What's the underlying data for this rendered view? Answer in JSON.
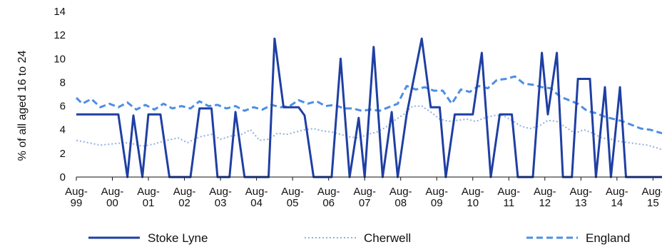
{
  "chart_data": {
    "type": "line",
    "ylabel": "% of all aged 16 to 24",
    "ylim": [
      0,
      14
    ],
    "yticks": [
      0,
      2,
      4,
      6,
      8,
      10,
      12,
      14
    ],
    "xlim": [
      0,
      195
    ],
    "xticks": [
      {
        "line1": "Aug-",
        "line2": "99",
        "x": 0
      },
      {
        "line1": "Aug-",
        "line2": "00",
        "x": 12
      },
      {
        "line1": "Aug-",
        "line2": "01",
        "x": 24
      },
      {
        "line1": "Aug-",
        "line2": "02",
        "x": 36
      },
      {
        "line1": "Aug-",
        "line2": "03",
        "x": 48
      },
      {
        "line1": "Aug-",
        "line2": "04",
        "x": 60
      },
      {
        "line1": "Aug-",
        "line2": "05",
        "x": 72
      },
      {
        "line1": "Aug-",
        "line2": "06",
        "x": 84
      },
      {
        "line1": "Aug-",
        "line2": "07",
        "x": 96
      },
      {
        "line1": "Aug-",
        "line2": "08",
        "x": 108
      },
      {
        "line1": "Aug-",
        "line2": "09",
        "x": 120
      },
      {
        "line1": "Aug-",
        "line2": "10",
        "x": 132
      },
      {
        "line1": "Aug-",
        "line2": "11",
        "x": 144
      },
      {
        "line1": "Aug-",
        "line2": "12",
        "x": 156
      },
      {
        "line1": "Aug-",
        "line2": "13",
        "x": 168
      },
      {
        "line1": "Aug-",
        "line2": "14",
        "x": 180
      },
      {
        "line1": "Aug-",
        "line2": "15",
        "x": 192
      }
    ],
    "grid": false,
    "legend_position": "bottom",
    "series": [
      {
        "name": "Stoke Lyne",
        "color": "#1f3fa3",
        "dash": "solid",
        "points": [
          [
            0,
            5.3
          ],
          [
            14,
            5.3
          ],
          [
            17,
            0
          ],
          [
            19,
            5.2
          ],
          [
            22,
            0
          ],
          [
            24,
            5.3
          ],
          [
            28,
            5.3
          ],
          [
            31,
            0
          ],
          [
            38,
            0
          ],
          [
            41,
            5.8
          ],
          [
            45,
            5.8
          ],
          [
            47,
            0
          ],
          [
            51,
            0
          ],
          [
            53,
            5.5
          ],
          [
            56,
            0
          ],
          [
            64,
            0
          ],
          [
            66,
            11.7
          ],
          [
            69,
            5.9
          ],
          [
            74,
            5.9
          ],
          [
            76,
            5.2
          ],
          [
            79,
            0
          ],
          [
            85,
            0
          ],
          [
            88,
            10.0
          ],
          [
            91,
            0
          ],
          [
            94,
            5.0
          ],
          [
            96,
            0
          ],
          [
            99,
            11.0
          ],
          [
            102,
            0
          ],
          [
            105,
            5.5
          ],
          [
            107,
            0
          ],
          [
            110,
            5.3
          ],
          [
            115,
            11.7
          ],
          [
            118,
            5.9
          ],
          [
            121,
            5.9
          ],
          [
            123,
            0
          ],
          [
            126,
            5.3
          ],
          [
            132,
            5.3
          ],
          [
            135,
            10.5
          ],
          [
            138,
            0
          ],
          [
            141,
            5.3
          ],
          [
            145,
            5.3
          ],
          [
            147,
            0
          ],
          [
            152,
            0
          ],
          [
            155,
            10.5
          ],
          [
            157,
            5.3
          ],
          [
            160,
            10.5
          ],
          [
            162,
            0
          ],
          [
            165,
            0
          ],
          [
            167,
            8.3
          ],
          [
            171,
            8.3
          ],
          [
            173,
            0
          ],
          [
            176,
            7.6
          ],
          [
            178,
            0
          ],
          [
            181,
            7.6
          ],
          [
            183,
            0
          ],
          [
            195,
            0
          ]
        ]
      },
      {
        "name": "Cherwell",
        "color": "#8eb1e0",
        "dash": "dotted",
        "points": [
          [
            0,
            3.1
          ],
          [
            4,
            2.9
          ],
          [
            8,
            2.7
          ],
          [
            12,
            2.8
          ],
          [
            16,
            2.9
          ],
          [
            19,
            2.8
          ],
          [
            22,
            2.6
          ],
          [
            26,
            2.8
          ],
          [
            30,
            3.1
          ],
          [
            34,
            3.3
          ],
          [
            37,
            2.9
          ],
          [
            41,
            3.4
          ],
          [
            45,
            3.6
          ],
          [
            48,
            3.2
          ],
          [
            52,
            3.5
          ],
          [
            55,
            3.6
          ],
          [
            58,
            4.0
          ],
          [
            61,
            3.1
          ],
          [
            64,
            3.2
          ],
          [
            67,
            3.7
          ],
          [
            70,
            3.6
          ],
          [
            73,
            3.8
          ],
          [
            76,
            4.0
          ],
          [
            79,
            4.1
          ],
          [
            82,
            3.9
          ],
          [
            85,
            3.8
          ],
          [
            88,
            3.6
          ],
          [
            91,
            3.4
          ],
          [
            94,
            3.3
          ],
          [
            97,
            3.6
          ],
          [
            100,
            3.8
          ],
          [
            103,
            4.2
          ],
          [
            106,
            4.8
          ],
          [
            109,
            5.3
          ],
          [
            112,
            6.0
          ],
          [
            115,
            6.0
          ],
          [
            118,
            5.5
          ],
          [
            121,
            4.9
          ],
          [
            124,
            4.7
          ],
          [
            127,
            4.8
          ],
          [
            130,
            4.9
          ],
          [
            133,
            4.7
          ],
          [
            136,
            5.0
          ],
          [
            139,
            5.2
          ],
          [
            142,
            5.2
          ],
          [
            145,
            4.8
          ],
          [
            148,
            4.3
          ],
          [
            151,
            4.1
          ],
          [
            154,
            4.3
          ],
          [
            157,
            4.8
          ],
          [
            160,
            4.7
          ],
          [
            163,
            4.2
          ],
          [
            166,
            3.7
          ],
          [
            169,
            4.0
          ],
          [
            172,
            3.7
          ],
          [
            175,
            3.3
          ],
          [
            178,
            3.2
          ],
          [
            181,
            3.0
          ],
          [
            184,
            2.9
          ],
          [
            187,
            2.8
          ],
          [
            190,
            2.7
          ],
          [
            193,
            2.5
          ],
          [
            195,
            2.3
          ]
        ]
      },
      {
        "name": "England",
        "color": "#4d8ee6",
        "dash": "dashed",
        "points": [
          [
            0,
            6.7
          ],
          [
            2,
            6.2
          ],
          [
            5,
            6.6
          ],
          [
            8,
            5.9
          ],
          [
            11,
            6.2
          ],
          [
            14,
            5.9
          ],
          [
            17,
            6.3
          ],
          [
            20,
            5.7
          ],
          [
            23,
            6.1
          ],
          [
            26,
            5.7
          ],
          [
            29,
            6.2
          ],
          [
            32,
            5.8
          ],
          [
            35,
            6.0
          ],
          [
            38,
            5.8
          ],
          [
            41,
            6.4
          ],
          [
            44,
            6.0
          ],
          [
            47,
            6.1
          ],
          [
            50,
            5.8
          ],
          [
            53,
            6.0
          ],
          [
            56,
            5.6
          ],
          [
            59,
            5.9
          ],
          [
            62,
            5.7
          ],
          [
            65,
            6.1
          ],
          [
            68,
            5.9
          ],
          [
            71,
            6.0
          ],
          [
            74,
            6.5
          ],
          [
            77,
            6.2
          ],
          [
            80,
            6.4
          ],
          [
            83,
            6.0
          ],
          [
            86,
            6.1
          ],
          [
            89,
            5.8
          ],
          [
            92,
            5.8
          ],
          [
            95,
            5.6
          ],
          [
            98,
            5.7
          ],
          [
            101,
            5.6
          ],
          [
            104,
            5.9
          ],
          [
            107,
            6.2
          ],
          [
            110,
            7.7
          ],
          [
            113,
            7.4
          ],
          [
            116,
            7.6
          ],
          [
            119,
            7.3
          ],
          [
            122,
            7.3
          ],
          [
            125,
            6.2
          ],
          [
            128,
            7.4
          ],
          [
            131,
            7.2
          ],
          [
            134,
            7.7
          ],
          [
            137,
            7.5
          ],
          [
            140,
            8.2
          ],
          [
            143,
            8.3
          ],
          [
            146,
            8.5
          ],
          [
            149,
            7.9
          ],
          [
            152,
            7.8
          ],
          [
            155,
            7.6
          ],
          [
            158,
            7.5
          ],
          [
            161,
            6.8
          ],
          [
            164,
            6.5
          ],
          [
            167,
            6.2
          ],
          [
            170,
            5.6
          ],
          [
            173,
            5.4
          ],
          [
            176,
            5.1
          ],
          [
            179,
            4.9
          ],
          [
            182,
            4.7
          ],
          [
            185,
            4.4
          ],
          [
            188,
            4.1
          ],
          [
            191,
            4.0
          ],
          [
            195,
            3.7
          ]
        ]
      }
    ]
  }
}
